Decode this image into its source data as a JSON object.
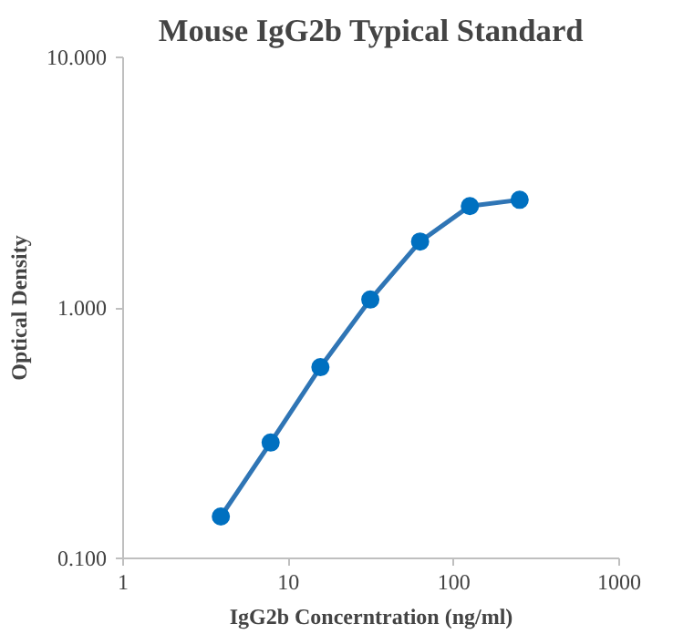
{
  "chart_data": {
    "type": "line",
    "title": "Mouse IgG2b Typical Standard",
    "xlabel": "IgG2b Concerntration (ng/ml)",
    "ylabel": "Optical Density",
    "x": [
      3.9,
      7.8,
      15.6,
      31.25,
      62.5,
      125,
      250
    ],
    "series": [
      {
        "color": "#2f75b5",
        "values": [
          0.147,
          0.29,
          0.58,
          1.08,
          1.84,
          2.55,
          2.7
        ]
      }
    ],
    "log": "xy",
    "xlim": [
      1,
      1000
    ],
    "xticks": [
      1,
      10,
      100,
      1000
    ],
    "ylim": [
      0.1,
      10
    ],
    "yticks": [
      {
        "value": 0.1,
        "label": "0.100"
      },
      {
        "value": 1,
        "label": "1.000"
      },
      {
        "value": 10,
        "label": "10.000"
      }
    ],
    "grid": false,
    "marker": "circle",
    "line_style": "solid"
  }
}
